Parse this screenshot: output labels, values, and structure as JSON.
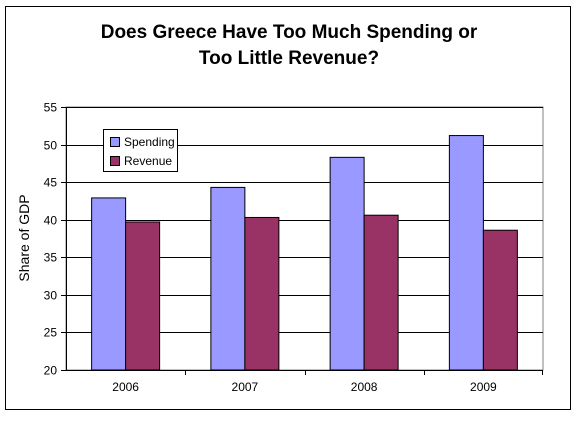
{
  "chart_data": {
    "type": "bar",
    "title_lines": [
      "Does Greece Have Too Much Spending or",
      "Too Little Revenue?"
    ],
    "xlabel": "",
    "ylabel": "Share of GDP",
    "categories": [
      "2006",
      "2007",
      "2008",
      "2009"
    ],
    "series": [
      {
        "name": "Spending",
        "values": [
          42.9,
          44.3,
          48.3,
          51.2
        ],
        "color": "#9999ff"
      },
      {
        "name": "Revenue",
        "values": [
          39.7,
          40.3,
          40.6,
          38.6
        ],
        "color": "#993366"
      }
    ],
    "ylim": [
      20,
      55
    ],
    "yticks": [
      20,
      25,
      30,
      35,
      40,
      45,
      50,
      55
    ],
    "grid": true,
    "legend_position": "top-left"
  }
}
